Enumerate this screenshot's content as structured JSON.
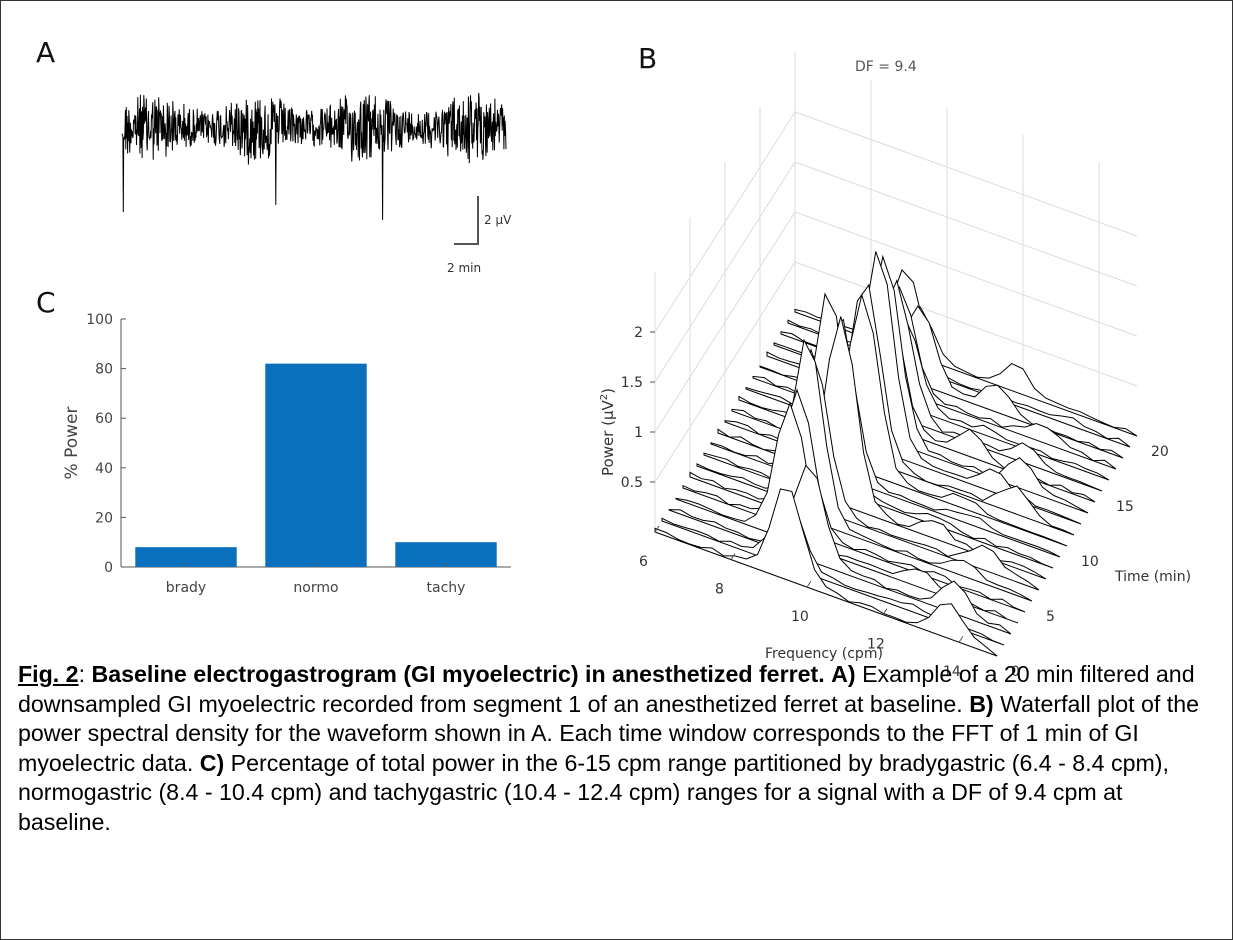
{
  "panels": {
    "a": {
      "letter": "A",
      "scale_v": "2 µV",
      "scale_h": "2 min"
    },
    "b": {
      "letter": "B",
      "df_label": "DF = 9.4"
    },
    "c": {
      "letter": "C"
    }
  },
  "chart_data": [
    {
      "type": "line",
      "panel": "A",
      "description_label": "",
      "scale_bar": {
        "vertical": "2 µV",
        "horizontal": "2 min"
      },
      "duration_min": 20
    },
    {
      "type": "bar",
      "panel": "C",
      "categories": [
        "brady",
        "normo",
        "tachy"
      ],
      "values": [
        8,
        82,
        10
      ],
      "ylabel": "% Power",
      "xlabel": "",
      "ylim": [
        0,
        100
      ],
      "yticks": [
        "0",
        "20",
        "40",
        "60",
        "80",
        "100"
      ],
      "color": "#0a6fbd"
    },
    {
      "type": "waterfall",
      "panel": "B",
      "xlabel": "Frequency (cpm)",
      "ylabel": "Time (min)",
      "zlabel": "Power (µV²)",
      "zlabel_main": "Power  (µV",
      "zlabel_sup": "2",
      "zlabel_end": ")",
      "x_ticks": [
        "6",
        "8",
        "10",
        "12",
        "14"
      ],
      "y_ticks": [
        "0",
        "5",
        "10",
        "15",
        "20"
      ],
      "z_ticks": [
        "0.5",
        "1",
        "1.5",
        "2"
      ],
      "dominant_frequency": 9.4,
      "annotation": "DF = 9.4"
    }
  ],
  "caption": {
    "fig_label": "Fig. 2",
    "colon": ": ",
    "title": "Baseline electrogastrogram (GI myoelectric) in anesthetized ferret.",
    "a_label": "A)",
    "a_text": "Example of a 20 min filtered and downsampled GI myoelectric recorded from segment 1 of an anesthetized ferret at baseline.",
    "b_label": "B)",
    "b_text": "Waterfall plot of the power spectral density for the waveform shown in A. Each time window corresponds to the FFT of 1 min of GI myoelectric data.",
    "c_label": "C)",
    "c_text": "Percentage of total power in the 6-15 cpm range partitioned by bradygastric (6.4 - 8.4 cpm), normogastric (8.4 - 10.4 cpm) and tachygastric (10.4 - 12.4 cpm) ranges for a signal with a DF of 9.4 cpm at baseline."
  }
}
